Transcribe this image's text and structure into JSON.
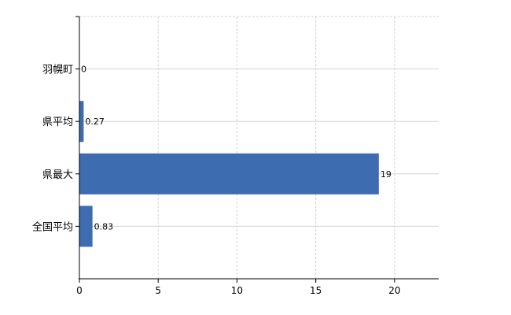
{
  "chart_data": {
    "type": "bar",
    "orientation": "horizontal",
    "categories": [
      "羽幌町",
      "県平均",
      "県最大",
      "全国平均"
    ],
    "values": [
      0,
      0.27,
      19,
      0.83
    ],
    "data_labels": [
      "0",
      "0.27",
      "19",
      "0.83"
    ],
    "xlim": [
      0,
      22.8
    ],
    "xticks": [
      0,
      5,
      10,
      15,
      20
    ],
    "xtick_labels": [
      "0",
      "5",
      "10",
      "15",
      "20"
    ],
    "title": "",
    "xlabel": "",
    "ylabel": "",
    "grid": true,
    "legend": "none",
    "bar_color": "#3d6cb0",
    "grid_color": "#d4d4d4"
  }
}
